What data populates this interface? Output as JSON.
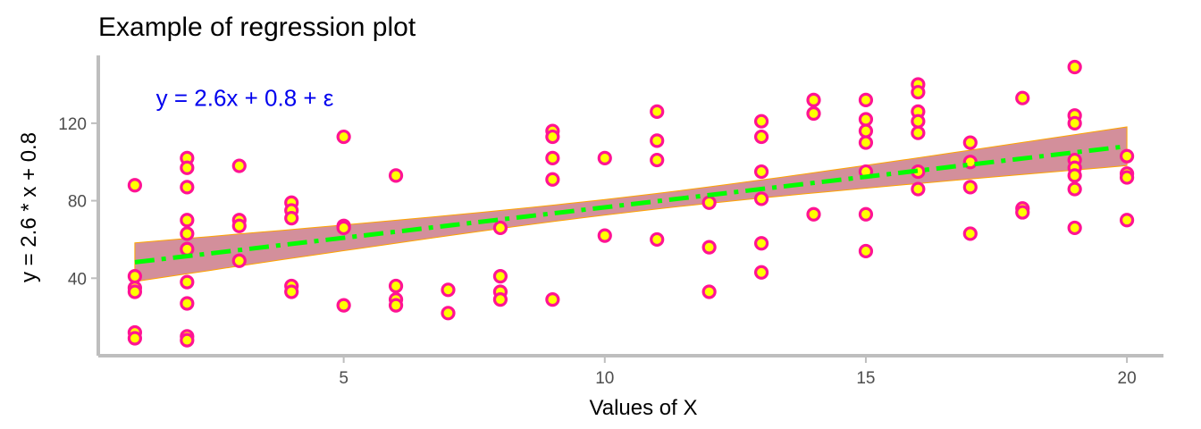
{
  "chart_data": {
    "type": "scatter",
    "title": "Example of regression plot",
    "xlabel": "Values of X",
    "ylabel": "y = 2.6 * x + 0.8",
    "xlim": [
      0.3,
      20.7
    ],
    "ylim": [
      0,
      155
    ],
    "x_ticks": [
      5,
      10,
      15,
      20
    ],
    "y_ticks": [
      40,
      80,
      120
    ],
    "grid": false,
    "annotation": {
      "text": "y = 2.6x + 0.8 + ε",
      "x": 5,
      "y": 133,
      "color": "#0000ee"
    },
    "colors": {
      "point_stroke": "#ff1493",
      "point_fill": "#ffff00",
      "fit_line": "#00ff00",
      "ribbon_fill": "#c06070",
      "ribbon_edge": "#ffa500",
      "axis": "#bebebe"
    },
    "fit": {
      "slope": 3.15,
      "intercept": 45.1,
      "ci_halfwidth_at_ends": 10,
      "ci_halfwidth_at_mean": 4,
      "x_range": [
        1,
        20
      ]
    },
    "points": [
      {
        "x": 1,
        "y": 88
      },
      {
        "x": 1,
        "y": 41
      },
      {
        "x": 1,
        "y": 35
      },
      {
        "x": 1,
        "y": 33
      },
      {
        "x": 1,
        "y": 12
      },
      {
        "x": 1,
        "y": 9
      },
      {
        "x": 2,
        "y": 102
      },
      {
        "x": 2,
        "y": 97
      },
      {
        "x": 2,
        "y": 87
      },
      {
        "x": 2,
        "y": 70
      },
      {
        "x": 2,
        "y": 63
      },
      {
        "x": 2,
        "y": 55
      },
      {
        "x": 2,
        "y": 38
      },
      {
        "x": 2,
        "y": 27
      },
      {
        "x": 2,
        "y": 10
      },
      {
        "x": 2,
        "y": 8
      },
      {
        "x": 3,
        "y": 98
      },
      {
        "x": 3,
        "y": 70
      },
      {
        "x": 3,
        "y": 67
      },
      {
        "x": 3,
        "y": 49
      },
      {
        "x": 4,
        "y": 79
      },
      {
        "x": 4,
        "y": 75
      },
      {
        "x": 4,
        "y": 71
      },
      {
        "x": 4,
        "y": 36
      },
      {
        "x": 4,
        "y": 33
      },
      {
        "x": 5,
        "y": 113
      },
      {
        "x": 5,
        "y": 67
      },
      {
        "x": 5,
        "y": 66
      },
      {
        "x": 5,
        "y": 26
      },
      {
        "x": 6,
        "y": 93
      },
      {
        "x": 6,
        "y": 36
      },
      {
        "x": 6,
        "y": 29
      },
      {
        "x": 6,
        "y": 26
      },
      {
        "x": 7,
        "y": 34
      },
      {
        "x": 7,
        "y": 22
      },
      {
        "x": 8,
        "y": 66
      },
      {
        "x": 8,
        "y": 41
      },
      {
        "x": 8,
        "y": 33
      },
      {
        "x": 8,
        "y": 29
      },
      {
        "x": 9,
        "y": 116
      },
      {
        "x": 9,
        "y": 113
      },
      {
        "x": 9,
        "y": 102
      },
      {
        "x": 9,
        "y": 91
      },
      {
        "x": 9,
        "y": 29
      },
      {
        "x": 10,
        "y": 102
      },
      {
        "x": 10,
        "y": 62
      },
      {
        "x": 11,
        "y": 126
      },
      {
        "x": 11,
        "y": 111
      },
      {
        "x": 11,
        "y": 101
      },
      {
        "x": 11,
        "y": 60
      },
      {
        "x": 12,
        "y": 79
      },
      {
        "x": 12,
        "y": 56
      },
      {
        "x": 12,
        "y": 33
      },
      {
        "x": 13,
        "y": 121
      },
      {
        "x": 13,
        "y": 113
      },
      {
        "x": 13,
        "y": 95
      },
      {
        "x": 13,
        "y": 81
      },
      {
        "x": 13,
        "y": 58
      },
      {
        "x": 13,
        "y": 43
      },
      {
        "x": 14,
        "y": 132
      },
      {
        "x": 14,
        "y": 125
      },
      {
        "x": 14,
        "y": 73
      },
      {
        "x": 15,
        "y": 132
      },
      {
        "x": 15,
        "y": 122
      },
      {
        "x": 15,
        "y": 116
      },
      {
        "x": 15,
        "y": 110
      },
      {
        "x": 15,
        "y": 95
      },
      {
        "x": 15,
        "y": 73
      },
      {
        "x": 15,
        "y": 54
      },
      {
        "x": 16,
        "y": 140
      },
      {
        "x": 16,
        "y": 136
      },
      {
        "x": 16,
        "y": 126
      },
      {
        "x": 16,
        "y": 121
      },
      {
        "x": 16,
        "y": 115
      },
      {
        "x": 16,
        "y": 95
      },
      {
        "x": 16,
        "y": 86
      },
      {
        "x": 17,
        "y": 110
      },
      {
        "x": 17,
        "y": 100
      },
      {
        "x": 17,
        "y": 87
      },
      {
        "x": 17,
        "y": 63
      },
      {
        "x": 18,
        "y": 133
      },
      {
        "x": 18,
        "y": 76
      },
      {
        "x": 18,
        "y": 74
      },
      {
        "x": 19,
        "y": 149
      },
      {
        "x": 19,
        "y": 124
      },
      {
        "x": 19,
        "y": 120
      },
      {
        "x": 19,
        "y": 101
      },
      {
        "x": 19,
        "y": 97
      },
      {
        "x": 19,
        "y": 93
      },
      {
        "x": 19,
        "y": 86
      },
      {
        "x": 19,
        "y": 66
      },
      {
        "x": 20,
        "y": 103
      },
      {
        "x": 20,
        "y": 94
      },
      {
        "x": 20,
        "y": 92
      },
      {
        "x": 20,
        "y": 70
      }
    ]
  }
}
